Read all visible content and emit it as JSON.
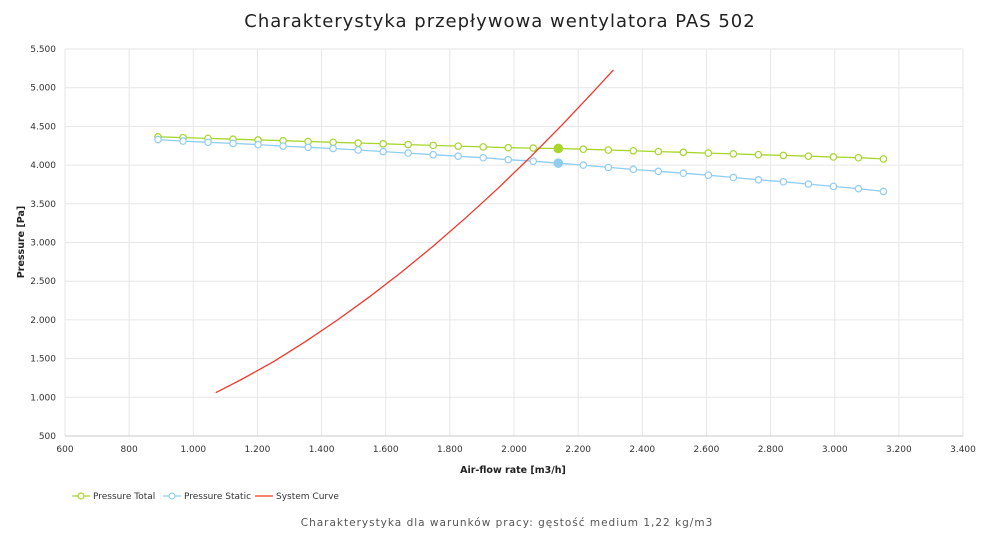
{
  "chart_data": {
    "type": "line",
    "title": "Charakterystyka przepływowa wentylatora PAS 502",
    "subtitle": "Charakterystyka dla warunków pracy: gęstość medium 1,22 kg/m3",
    "xlabel": "Air-flow rate [m3/h]",
    "ylabel": "Pressure [Pa]",
    "xlim": [
      600,
      3400
    ],
    "ylim": [
      500,
      5500
    ],
    "x_ticks": [
      600,
      800,
      1000,
      1200,
      1400,
      1600,
      1800,
      2000,
      2200,
      2400,
      2600,
      2800,
      3000,
      3200,
      3400
    ],
    "x_tick_labels": [
      "600",
      "800",
      "1.000",
      "1.200",
      "1.400",
      "1.600",
      "1.800",
      "2.000",
      "2.200",
      "2.400",
      "2.600",
      "2.800",
      "3.000",
      "3.200",
      "3.400"
    ],
    "y_ticks": [
      500,
      1000,
      1500,
      2000,
      2500,
      3000,
      3500,
      4000,
      4500,
      5000,
      5500
    ],
    "y_tick_labels": [
      "500",
      "1.000",
      "1.500",
      "2.000",
      "2.500",
      "3.000",
      "3.500",
      "4.000",
      "4.500",
      "5.000",
      "5.500"
    ],
    "grid": true,
    "legend_position": "bottom-left",
    "series": [
      {
        "name": "Pressure Total",
        "color": "#a6d629",
        "marker": "circle",
        "x": [
          890,
          968,
          1046,
          1124,
          1202,
          1280,
          1358,
          1436,
          1514,
          1592,
          1670,
          1748,
          1826,
          1904,
          1982,
          2060,
          2138,
          2216,
          2294,
          2372,
          2450,
          2528,
          2606,
          2684,
          2762,
          2840,
          2918,
          2996,
          3074,
          3152
        ],
        "y": [
          4365,
          4355,
          4345,
          4335,
          4325,
          4315,
          4305,
          4295,
          4285,
          4275,
          4265,
          4255,
          4245,
          4235,
          4225,
          4220,
          4215,
          4205,
          4195,
          4185,
          4175,
          4165,
          4155,
          4145,
          4135,
          4125,
          4115,
          4105,
          4095,
          4080
        ],
        "highlight_index": 16
      },
      {
        "name": "Pressure Static",
        "color": "#8fcdf2",
        "marker": "circle",
        "x": [
          890,
          968,
          1046,
          1124,
          1202,
          1280,
          1358,
          1436,
          1514,
          1592,
          1670,
          1748,
          1826,
          1904,
          1982,
          2060,
          2138,
          2216,
          2294,
          2372,
          2450,
          2528,
          2606,
          2684,
          2762,
          2840,
          2918,
          2996,
          3074,
          3152
        ],
        "y": [
          4330,
          4310,
          4295,
          4280,
          4265,
          4245,
          4230,
          4215,
          4195,
          4175,
          4155,
          4135,
          4115,
          4095,
          4070,
          4050,
          4025,
          4000,
          3970,
          3945,
          3920,
          3895,
          3870,
          3840,
          3810,
          3785,
          3755,
          3725,
          3695,
          3660
        ],
        "highlight_index": 16
      },
      {
        "name": "System Curve",
        "color": "#f0382b",
        "marker": "none",
        "x": [
          1070,
          1150,
          1250,
          1350,
          1450,
          1550,
          1650,
          1750,
          1850,
          1950,
          2050,
          2150,
          2250,
          2310
        ],
        "y": [
          1060,
          1230,
          1460,
          1720,
          2000,
          2300,
          2620,
          2960,
          3320,
          3700,
          4100,
          4520,
          4960,
          5230
        ]
      }
    ]
  }
}
